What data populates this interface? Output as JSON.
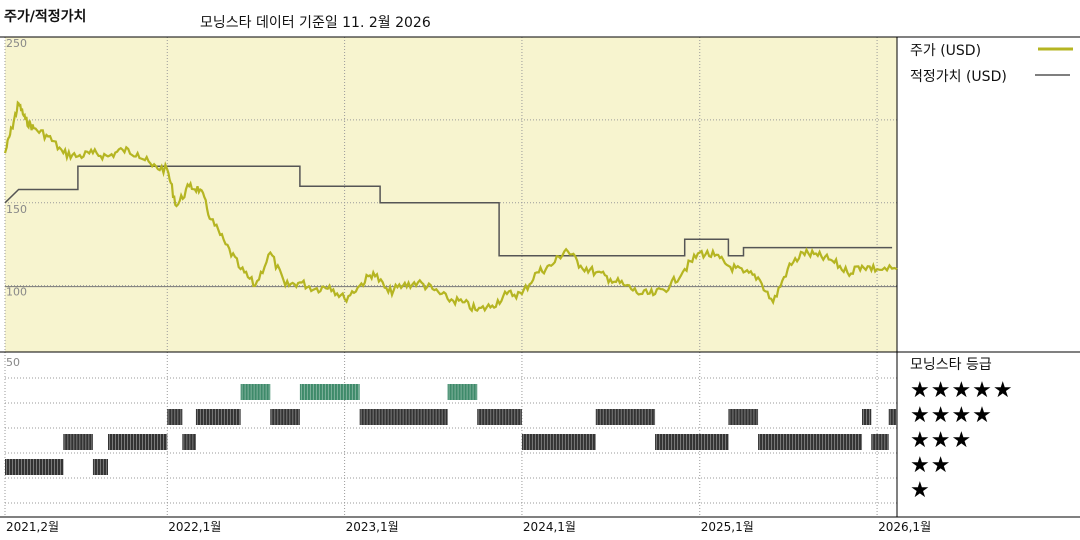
{
  "header": {
    "title": "주가/적정가치",
    "date_text": "모닝스타 데이터 기준일 11. 2월 2026"
  },
  "colors": {
    "price_line": "#b5b522",
    "fair_value_line": "#555555",
    "upper_panel_bg": "#f7f4cf",
    "rating_green": "#3e8a6a",
    "rating_black": "#333333"
  },
  "chart_data": [
    {
      "type": "line",
      "title": "주가/적정가치",
      "legend_position": "right",
      "y_tick_labels": [
        "250",
        "150",
        "100"
      ],
      "ylim": [
        60,
        250
      ],
      "x_tick_labels": [
        "2021,2월",
        "2022,1월",
        "2023,1월",
        "2024,1월",
        "2025,1월",
        "2026,1월"
      ],
      "x_tick_dates": [
        "2021-02-01",
        "2022-01-01",
        "2023-01-01",
        "2024-01-01",
        "2025-01-01",
        "2026-01-01"
      ],
      "xlim": [
        "2021-02-01",
        "2026-02-11"
      ],
      "series": [
        {
          "name": "주가 (USD)",
          "points": [
            [
              "2021-02-01",
              180
            ],
            [
              "2021-02-15",
              195
            ],
            [
              "2021-03-01",
              210
            ],
            [
              "2021-03-15",
              200
            ],
            [
              "2021-04-01",
              195
            ],
            [
              "2021-05-01",
              190
            ],
            [
              "2021-06-01",
              180
            ],
            [
              "2021-07-01",
              178
            ],
            [
              "2021-08-01",
              180
            ],
            [
              "2021-09-01",
              178
            ],
            [
              "2021-10-01",
              182
            ],
            [
              "2021-11-01",
              180
            ],
            [
              "2021-12-01",
              172
            ],
            [
              "2022-01-01",
              170
            ],
            [
              "2022-01-20",
              148
            ],
            [
              "2022-02-15",
              160
            ],
            [
              "2022-03-10",
              158
            ],
            [
              "2022-04-01",
              140
            ],
            [
              "2022-05-01",
              125
            ],
            [
              "2022-06-01",
              110
            ],
            [
              "2022-07-01",
              100
            ],
            [
              "2022-08-01",
              120
            ],
            [
              "2022-09-01",
              100
            ],
            [
              "2022-10-01",
              102
            ],
            [
              "2022-11-01",
              98
            ],
            [
              "2022-12-01",
              100
            ],
            [
              "2023-01-01",
              92
            ],
            [
              "2023-02-01",
              100
            ],
            [
              "2023-03-01",
              108
            ],
            [
              "2023-04-01",
              96
            ],
            [
              "2023-05-01",
              100
            ],
            [
              "2023-06-01",
              102
            ],
            [
              "2023-07-01",
              98
            ],
            [
              "2023-08-01",
              92
            ],
            [
              "2023-09-01",
              90
            ],
            [
              "2023-10-01",
              85
            ],
            [
              "2023-11-01",
              88
            ],
            [
              "2023-12-01",
              95
            ],
            [
              "2024-01-01",
              95
            ],
            [
              "2024-02-01",
              108
            ],
            [
              "2024-03-01",
              112
            ],
            [
              "2024-04-01",
              122
            ],
            [
              "2024-05-01",
              112
            ],
            [
              "2024-06-01",
              108
            ],
            [
              "2024-07-01",
              104
            ],
            [
              "2024-08-01",
              100
            ],
            [
              "2024-09-01",
              95
            ],
            [
              "2024-10-01",
              95
            ],
            [
              "2024-11-01",
              100
            ],
            [
              "2024-12-01",
              110
            ],
            [
              "2025-01-01",
              120
            ],
            [
              "2025-02-01",
              118
            ],
            [
              "2025-03-01",
              112
            ],
            [
              "2025-04-01",
              108
            ],
            [
              "2025-05-01",
              105
            ],
            [
              "2025-06-01",
              90
            ],
            [
              "2025-07-01",
              110
            ],
            [
              "2025-08-01",
              120
            ],
            [
              "2025-09-01",
              118
            ],
            [
              "2025-10-01",
              115
            ],
            [
              "2025-11-01",
              108
            ],
            [
              "2025-12-01",
              112
            ],
            [
              "2026-01-01",
              110
            ],
            [
              "2026-02-11",
              110
            ]
          ]
        },
        {
          "name": "적정가치 (USD)",
          "points": [
            [
              "2021-02-01",
              150
            ],
            [
              "2021-03-01",
              158
            ],
            [
              "2021-07-01",
              158
            ],
            [
              "2021-07-01",
              172
            ],
            [
              "2022-10-01",
              172
            ],
            [
              "2022-10-01",
              160
            ],
            [
              "2023-03-15",
              160
            ],
            [
              "2023-03-15",
              150
            ],
            [
              "2023-11-15",
              150
            ],
            [
              "2023-11-15",
              118
            ],
            [
              "2024-12-01",
              118
            ],
            [
              "2024-12-01",
              128
            ],
            [
              "2025-03-01",
              128
            ],
            [
              "2025-03-01",
              118
            ],
            [
              "2025-04-01",
              118
            ],
            [
              "2025-04-01",
              123
            ],
            [
              "2026-02-01",
              123
            ]
          ]
        }
      ]
    },
    {
      "type": "bar",
      "title": "모닝스타 등급",
      "y_tick_labels": [
        "50"
      ],
      "categories_by_stars": [
        5,
        4,
        3,
        2,
        1
      ],
      "rating_periods": [
        {
          "stars": 2,
          "start": "2021-02-01",
          "end": "2021-06-01"
        },
        {
          "stars": 3,
          "start": "2021-06-01",
          "end": "2021-08-01"
        },
        {
          "stars": 2,
          "start": "2021-08-01",
          "end": "2021-09-01"
        },
        {
          "stars": 3,
          "start": "2021-09-01",
          "end": "2022-01-01"
        },
        {
          "stars": 4,
          "start": "2022-01-01",
          "end": "2022-02-01"
        },
        {
          "stars": 3,
          "start": "2022-02-01",
          "end": "2022-03-01"
        },
        {
          "stars": 4,
          "start": "2022-03-01",
          "end": "2022-06-01"
        },
        {
          "stars": 5,
          "start": "2022-06-01",
          "end": "2022-08-01"
        },
        {
          "stars": 4,
          "start": "2022-08-01",
          "end": "2022-10-01"
        },
        {
          "stars": 5,
          "start": "2022-10-01",
          "end": "2023-02-01"
        },
        {
          "stars": 4,
          "start": "2023-02-01",
          "end": "2023-08-01"
        },
        {
          "stars": 5,
          "start": "2023-08-01",
          "end": "2023-10-01"
        },
        {
          "stars": 4,
          "start": "2023-10-01",
          "end": "2024-01-01"
        },
        {
          "stars": 3,
          "start": "2024-01-01",
          "end": "2024-06-01"
        },
        {
          "stars": 4,
          "start": "2024-06-01",
          "end": "2024-10-01"
        },
        {
          "stars": 3,
          "start": "2024-10-01",
          "end": "2025-03-01"
        },
        {
          "stars": 4,
          "start": "2025-03-01",
          "end": "2025-05-01"
        },
        {
          "stars": 3,
          "start": "2025-05-01",
          "end": "2025-12-01"
        },
        {
          "stars": 4,
          "start": "2025-12-01",
          "end": "2025-12-20"
        },
        {
          "stars": 3,
          "start": "2025-12-20",
          "end": "2026-01-25"
        },
        {
          "stars": 4,
          "start": "2026-01-25",
          "end": "2026-02-11"
        }
      ]
    }
  ],
  "rating_legend": {
    "title": "모닝스타 등급",
    "rows": [
      "★★★★★",
      "★★★★",
      "★★★",
      "★★",
      "★"
    ]
  }
}
